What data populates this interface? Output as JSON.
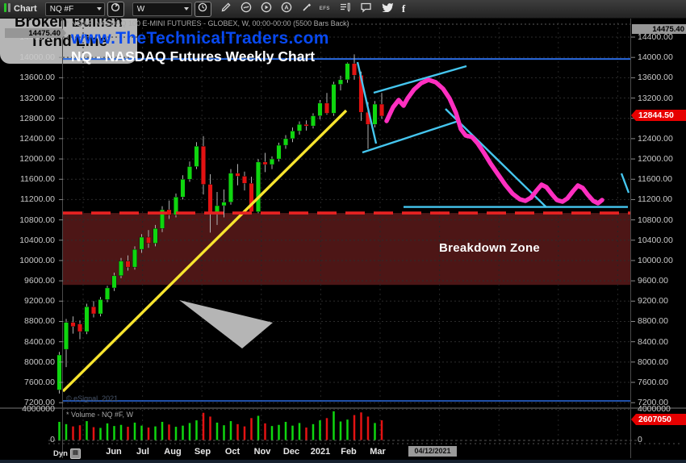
{
  "toolbar": {
    "tab_label": "Chart",
    "symbol_value": "NQ #F",
    "interval_value": "W",
    "efs_label": "EFS"
  },
  "header": {
    "series_title": "* NQ #F, NASDAQ 100 E-MINI FUTURES - GLOBEX, W, 00:00-00:00 (5500 Bars Back)",
    "watermark": "www.TheTechnicalTraders.com",
    "chart_title": "NQ - NASDAQ Futures Weekly Chart",
    "copyright": "© eSignal, 2021"
  },
  "volume_pane": {
    "title": "* Volume - NQ #F, W"
  },
  "annotations": {
    "breakdown_zone_label": "Breakdown Zone",
    "callout_line1": "Broken Bullish",
    "callout_line2": "Trend Line"
  },
  "axes": {
    "price_ticks": [
      "14400.00",
      "14000.00",
      "13600.00",
      "13200.00",
      "12800.00",
      "12400.00",
      "12000.00",
      "11600.00",
      "11200.00",
      "10800.00",
      "10400.00",
      "10000.00",
      "9600.00",
      "9200.00",
      "8800.00",
      "8400.00",
      "8000.00",
      "7600.00",
      "7200.00"
    ],
    "volume_ticks": [
      "4000000",
      "0"
    ],
    "months": [
      "Jun",
      "Jul",
      "Aug",
      "Sep",
      "Oct",
      "Nov",
      "Dec",
      "2021",
      "Feb",
      "Mar"
    ],
    "high_tag": "14475.40",
    "last_price_tag": "12844.50",
    "volume_tag": "2607050",
    "date_tag": "04/12/2021",
    "dyn_label": "Dyn"
  },
  "colors": {
    "candle_up": "#0fd60f",
    "candle_down": "#e31212",
    "wick": "#b0b0b0",
    "trend_yellow": "#f7e42e",
    "drawing_cyan": "#45c6ef",
    "projection_magenta": "#ff2fc0",
    "level_blue": "#2a6ae0",
    "zone_fill": "#4d1616",
    "zone_border_red": "#e82222",
    "tag_red": "#e60000",
    "tag_gray": "#969696",
    "watermark_blue": "#0849f0"
  },
  "chart_data": {
    "type": "candlestick+volume",
    "symbol": "NQ #F",
    "interval": "W",
    "bars_back_note": "5500 Bars Back",
    "price_axis": {
      "min": 7200,
      "max": 14400,
      "step": 400
    },
    "volume_axis": {
      "min": 0,
      "max": 4000000
    },
    "last_price": 12844.5,
    "last_volume": 2607050,
    "session_high_marker": 14475.4,
    "candles_ohlc": [
      [
        7450,
        8200,
        7380,
        8140
      ],
      [
        8250,
        8850,
        7900,
        8780
      ],
      [
        8780,
        8900,
        8560,
        8700
      ],
      [
        8750,
        8820,
        8450,
        8600
      ],
      [
        8600,
        9150,
        8550,
        9090
      ],
      [
        9090,
        9200,
        8880,
        8950
      ],
      [
        8950,
        9280,
        8900,
        9230
      ],
      [
        9230,
        9500,
        9180,
        9460
      ],
      [
        9460,
        9760,
        9400,
        9700
      ],
      [
        9700,
        10050,
        9650,
        9990
      ],
      [
        9990,
        10100,
        9800,
        9870
      ],
      [
        9870,
        10280,
        9820,
        10220
      ],
      [
        10220,
        10520,
        10150,
        10460
      ],
      [
        10460,
        10600,
        10250,
        10340
      ],
      [
        10340,
        10700,
        10280,
        10630
      ],
      [
        10630,
        11070,
        10560,
        11000
      ],
      [
        11000,
        11180,
        10820,
        10900
      ],
      [
        10900,
        11320,
        10850,
        11250
      ],
      [
        11250,
        11680,
        11200,
        11600
      ],
      [
        11600,
        11950,
        11550,
        11850
      ],
      [
        11850,
        12330,
        11800,
        12250
      ],
      [
        12250,
        12450,
        11300,
        11500
      ],
      [
        11500,
        11700,
        10550,
        10950
      ],
      [
        10950,
        11350,
        10700,
        11080
      ],
      [
        11080,
        11400,
        10850,
        11150
      ],
      [
        11150,
        11800,
        11100,
        11720
      ],
      [
        11720,
        11900,
        11480,
        11660
      ],
      [
        11660,
        11750,
        11380,
        11520
      ],
      [
        11520,
        11650,
        10920,
        10960
      ],
      [
        10960,
        12000,
        10930,
        11940
      ],
      [
        11940,
        12120,
        11740,
        11890
      ],
      [
        11890,
        12050,
        11800,
        12000
      ],
      [
        12000,
        12320,
        11950,
        12270
      ],
      [
        12270,
        12470,
        12200,
        12400
      ],
      [
        12400,
        12620,
        12330,
        12550
      ],
      [
        12550,
        12740,
        12480,
        12680
      ],
      [
        12680,
        12760,
        12560,
        12650
      ],
      [
        12650,
        12900,
        12600,
        12850
      ],
      [
        12850,
        13160,
        12780,
        13100
      ],
      [
        13100,
        13300,
        12870,
        12900
      ],
      [
        12900,
        13520,
        12850,
        13470
      ],
      [
        13470,
        13640,
        13350,
        13560
      ],
      [
        13560,
        13900,
        13500,
        13880
      ],
      [
        13880,
        14060,
        13560,
        13650
      ],
      [
        13650,
        13720,
        12750,
        12920
      ],
      [
        12920,
        13120,
        12200,
        12680
      ],
      [
        12680,
        13140,
        12620,
        13080
      ],
      [
        13080,
        13300,
        12790,
        12844.5
      ]
    ],
    "volumes": [
      2400000,
      2100000,
      1800000,
      1950000,
      2500000,
      1700000,
      1600000,
      2200000,
      1850000,
      2000000,
      1750000,
      2300000,
      1900000,
      1650000,
      1800000,
      2400000,
      2050000,
      1750000,
      1900000,
      2250000,
      2600000,
      3600000,
      3100000,
      2300000,
      1950000,
      2500000,
      2100000,
      1800000,
      2900000,
      3200000,
      2200000,
      1850000,
      2000000,
      2400000,
      1900000,
      2250000,
      1650000,
      2100000,
      2600000,
      2900000,
      3800000,
      2450000,
      2700000,
      3300000,
      3650000,
      3100000,
      2250000,
      2607050
    ],
    "levels": {
      "upper_blue_line_price": 13970,
      "lower_blue_line_price": 7235,
      "breakdown_zone_top_price": 10935,
      "breakdown_zone_bottom_price": 9520,
      "cyan_support_price": 11055
    },
    "drawings": {
      "yellow_trend_line": [
        [
          78,
          7425
        ],
        [
          429,
          12954
        ]
      ],
      "cyan_lines": [
        [
          [
            443,
            13907
          ],
          [
            466,
            12303
          ]
        ],
        [
          [
            463,
            13304
          ],
          [
            578,
            13828
          ]
        ],
        [
          [
            449,
            12128
          ],
          [
            568,
            12748
          ]
        ],
        [
          [
            552,
            12986
          ],
          [
            677,
            11048
          ]
        ],
        [
          [
            500,
            11055
          ],
          [
            778,
            11055
          ]
        ],
        [
          [
            770,
            11715
          ],
          [
            779,
            11334
          ]
        ]
      ],
      "magenta_projection": [
        [
          479,
          12748
        ],
        [
          487,
          13018
        ],
        [
          494,
          13161
        ],
        [
          500,
          13050
        ],
        [
          505,
          13193
        ],
        [
          513,
          13367
        ],
        [
          522,
          13494
        ],
        [
          531,
          13558
        ],
        [
          540,
          13510
        ],
        [
          549,
          13383
        ],
        [
          557,
          13193
        ],
        [
          565,
          12907
        ],
        [
          571,
          12589
        ],
        [
          577,
          12462
        ],
        [
          585,
          12430
        ],
        [
          592,
          12303
        ],
        [
          600,
          12112
        ],
        [
          608,
          11906
        ],
        [
          617,
          11699
        ],
        [
          626,
          11493
        ],
        [
          635,
          11318
        ],
        [
          644,
          11207
        ],
        [
          651,
          11175
        ],
        [
          658,
          11239
        ],
        [
          665,
          11382
        ],
        [
          671,
          11493
        ],
        [
          677,
          11445
        ],
        [
          684,
          11302
        ],
        [
          690,
          11191
        ],
        [
          697,
          11159
        ],
        [
          703,
          11223
        ],
        [
          710,
          11366
        ],
        [
          716,
          11477
        ],
        [
          722,
          11429
        ],
        [
          728,
          11302
        ],
        [
          735,
          11175
        ],
        [
          741,
          11128
        ],
        [
          746,
          11191
        ]
      ]
    }
  }
}
